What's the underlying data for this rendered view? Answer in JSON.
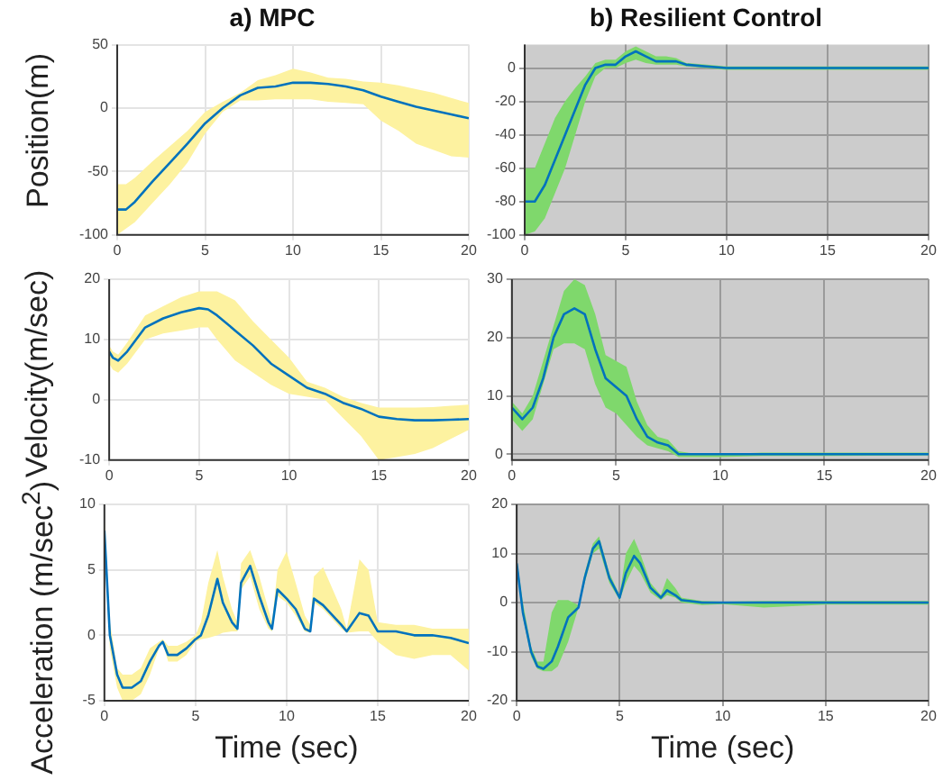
{
  "chart_data": [
    {
      "type": "line",
      "title": "a) MPC",
      "ylabel": "Position(m)",
      "x": [
        0,
        0.5,
        1,
        2,
        3,
        4,
        5,
        6,
        7,
        8,
        9,
        10,
        11,
        12,
        13,
        14,
        15,
        16,
        17,
        18,
        19,
        20
      ],
      "xlim": [
        0,
        20
      ],
      "xticks": [
        0,
        5,
        10,
        15,
        20
      ],
      "ylim": [
        -100,
        50
      ],
      "yticks": [
        -100,
        -50,
        0,
        50
      ],
      "grid": true,
      "marker": "none",
      "series": [
        {
          "color": "#0072bd",
          "values": [
            -80,
            -80,
            -74,
            -58,
            -43,
            -28,
            -12,
            0,
            10,
            16,
            17,
            20,
            20,
            19,
            17,
            14,
            9,
            5,
            1,
            -2,
            -5,
            -8
          ],
          "upper": [
            -60,
            -60,
            -55,
            -42,
            -30,
            -18,
            -3,
            5,
            12,
            22,
            26,
            31,
            28,
            24,
            23,
            21,
            20,
            18,
            15,
            12,
            8,
            4
          ],
          "lower": [
            -100,
            -95,
            -90,
            -75,
            -60,
            -43,
            -20,
            -3,
            6,
            6,
            7,
            7,
            7,
            5,
            4,
            3,
            -10,
            -18,
            -28,
            -33,
            -38,
            -39
          ]
        }
      ]
    },
    {
      "type": "line",
      "title": "b) Resilient Control",
      "x": [
        0,
        0.5,
        1,
        1.5,
        2,
        2.5,
        3,
        3.5,
        4,
        4.5,
        5,
        5.5,
        6,
        6.5,
        7,
        7.5,
        8,
        9,
        10,
        12,
        15,
        20
      ],
      "xlim": [
        0,
        20
      ],
      "xticks": [
        0,
        5,
        10,
        15,
        20
      ],
      "ylim": [
        -100,
        14
      ],
      "yticks": [
        -100,
        -80,
        -60,
        -40,
        -20,
        0
      ],
      "grid": true,
      "marker": "none",
      "series": [
        {
          "color": "#0072bd",
          "values": [
            -80,
            -80,
            -70,
            -55,
            -40,
            -25,
            -10,
            0,
            2,
            2,
            7,
            10,
            7,
            4,
            4,
            4,
            2,
            1,
            0,
            0,
            0,
            0
          ],
          "upper": [
            -60,
            -60,
            -45,
            -30,
            -20,
            -12,
            -5,
            3,
            5,
            5,
            10,
            13,
            10,
            7,
            7,
            6,
            3,
            2,
            1,
            1,
            1,
            1
          ],
          "lower": [
            -100,
            -98,
            -90,
            -75,
            -60,
            -40,
            -20,
            -5,
            0,
            0,
            3,
            5,
            3,
            2,
            2,
            2,
            1,
            0,
            -1,
            -1,
            -1,
            -1
          ]
        }
      ]
    },
    {
      "type": "line",
      "ylabel": "Velocity(m/sec)",
      "x": [
        0,
        0.2,
        0.5,
        1,
        2,
        3,
        4,
        5,
        5.5,
        6,
        7,
        8,
        9,
        10,
        11,
        12,
        13,
        14,
        15,
        16,
        17,
        18,
        19,
        20
      ],
      "xlim": [
        0,
        20
      ],
      "xticks": [
        0,
        5,
        10,
        15,
        20
      ],
      "ylim": [
        -10,
        20
      ],
      "yticks": [
        -10,
        0,
        10,
        20
      ],
      "grid": true,
      "marker": "none",
      "series": [
        {
          "color": "#0072bd",
          "values": [
            8,
            7,
            6.5,
            8,
            12,
            13.5,
            14.5,
            15.2,
            15,
            14,
            11.5,
            9,
            6,
            4,
            2,
            1,
            -0.5,
            -1.5,
            -2.8,
            -3.2,
            -3.4,
            -3.4,
            -3.3,
            -3.2
          ],
          "upper": [
            9,
            8,
            7.5,
            9.5,
            14,
            15.5,
            17,
            18,
            18,
            18,
            16.5,
            13,
            10,
            7,
            3,
            2,
            0.5,
            -0.5,
            -1.3,
            -1.3,
            -1.3,
            -1.2,
            -1,
            -0.8
          ],
          "lower": [
            6,
            5,
            4.5,
            6,
            10,
            11,
            11.5,
            12,
            12,
            10,
            6.5,
            4.5,
            2.5,
            1,
            0.5,
            0,
            -3,
            -6,
            -10,
            -9.5,
            -9,
            -8,
            -6.5,
            -5
          ]
        }
      ]
    },
    {
      "type": "line",
      "x": [
        0,
        0.5,
        1,
        1.5,
        2,
        2.5,
        3,
        3.5,
        4,
        4.5,
        5,
        5.5,
        6,
        6.5,
        7,
        7.5,
        8,
        9,
        10,
        12,
        15,
        20
      ],
      "xlim": [
        0,
        20
      ],
      "xticks": [
        0,
        5,
        10,
        15,
        20
      ],
      "ylim": [
        -1,
        30
      ],
      "yticks": [
        0,
        10,
        20,
        30
      ],
      "grid": true,
      "marker": "none",
      "series": [
        {
          "color": "#0072bd",
          "values": [
            8,
            6,
            8,
            13,
            20,
            24,
            25,
            24,
            18,
            13,
            11.5,
            10,
            6,
            3,
            2,
            1.5,
            0,
            0,
            0,
            0,
            0,
            0
          ],
          "upper": [
            9,
            7,
            10,
            16,
            22,
            28,
            30,
            29,
            24,
            17,
            16,
            15,
            9,
            5,
            3,
            2.5,
            0.5,
            0,
            0,
            0.3,
            0.3,
            0.3
          ],
          "lower": [
            6,
            4,
            6,
            12,
            18,
            19,
            19,
            18,
            12,
            8,
            7,
            5,
            3,
            1.5,
            1,
            0.5,
            -0.5,
            -0.5,
            -0.5,
            -0.3,
            -0.3,
            -0.2
          ]
        }
      ]
    },
    {
      "type": "line",
      "ylabel": "Acceleration (m/sec$^{2}$)",
      "xlabel": "Time (sec)",
      "x": [
        0,
        0.3,
        0.7,
        1,
        1.5,
        2,
        2.5,
        3,
        3.2,
        3.5,
        4,
        4.5,
        5,
        5.3,
        5.7,
        6.2,
        6.5,
        7,
        7.3,
        7.5,
        8,
        8.5,
        9,
        9.2,
        9.5,
        10,
        10.5,
        11,
        11.3,
        11.5,
        12,
        13,
        13.3,
        14,
        14.5,
        15,
        16,
        17,
        18,
        19,
        20
      ],
      "xlim": [
        0,
        20
      ],
      "xticks": [
        0,
        5,
        10,
        15,
        20
      ],
      "ylim": [
        -5,
        10
      ],
      "yticks": [
        -5,
        0,
        5,
        10
      ],
      "grid": true,
      "marker": "none",
      "series": [
        {
          "color": "#0072bd",
          "values": [
            8,
            0,
            -3,
            -4,
            -4,
            -3.5,
            -2,
            -0.8,
            -0.5,
            -1.5,
            -1.5,
            -1,
            -0.3,
            0,
            1.5,
            4.3,
            2.5,
            1,
            0.5,
            4,
            5.3,
            3,
            1,
            0.5,
            3.5,
            2.8,
            2,
            0.5,
            0.3,
            2.8,
            2.3,
            0.8,
            0.3,
            1.7,
            1.5,
            0.3,
            0.3,
            0,
            0,
            -0.2,
            -0.6
          ],
          "upper": [
            9,
            1,
            -2.5,
            -3,
            -3,
            -2.5,
            -1,
            -0.5,
            -0.3,
            -0.8,
            -0.8,
            -0.5,
            0,
            1,
            4,
            6.5,
            4.5,
            2,
            1,
            5.5,
            6.5,
            4.5,
            2,
            1,
            5,
            6.4,
            4,
            1.5,
            0.8,
            4.5,
            5.2,
            2,
            0.5,
            5.8,
            5,
            1,
            0.8,
            0.8,
            0.5,
            0.5,
            0.5
          ],
          "lower": [
            8,
            -1,
            -4,
            -5,
            -5,
            -4.5,
            -3,
            -1,
            -0.6,
            -2,
            -2,
            -1.5,
            -0.5,
            -0.3,
            -0.2,
            0,
            0.2,
            0.3,
            0.3,
            3.5,
            4.5,
            2,
            0.5,
            0.3,
            3,
            2.5,
            1.5,
            0.3,
            0.2,
            2.5,
            2,
            0.5,
            0.2,
            0.3,
            0.3,
            -0.5,
            -1.5,
            -1.8,
            -1.5,
            -1.5,
            -2.7
          ]
        }
      ]
    },
    {
      "type": "line",
      "xlabel": "Time (sec)",
      "x": [
        0,
        0.3,
        0.7,
        1,
        1.3,
        1.7,
        2,
        2.5,
        3,
        3.3,
        3.7,
        4,
        4.5,
        5,
        5.3,
        5.7,
        6,
        6.5,
        7,
        7.3,
        7.7,
        8,
        9,
        10,
        12,
        15,
        20
      ],
      "xlim": [
        0,
        20
      ],
      "xticks": [
        0,
        5,
        10,
        15,
        20
      ],
      "ylim": [
        -20,
        20
      ],
      "yticks": [
        -20,
        -10,
        0,
        10,
        20
      ],
      "grid": true,
      "marker": "none",
      "series": [
        {
          "color": "#0072bd",
          "values": [
            8,
            -2,
            -10,
            -13,
            -13.5,
            -12,
            -9,
            -3,
            -1,
            5,
            11,
            12.5,
            5,
            1,
            6,
            9.5,
            8,
            3,
            1,
            2.5,
            1.5,
            0.5,
            0,
            0,
            0,
            0,
            0
          ],
          "upper": [
            9,
            0,
            -9,
            -12,
            -12,
            -2,
            0.5,
            0.5,
            -0.5,
            6,
            12,
            13.5,
            6,
            1.5,
            10,
            13,
            10,
            4,
            1.5,
            5,
            3,
            1,
            0.3,
            0.2,
            0.3,
            0.3,
            0.3
          ],
          "lower": [
            8,
            -3,
            -11,
            -13.5,
            -14,
            -14,
            -13,
            -8,
            -1,
            4,
            10,
            11,
            4,
            0.5,
            4,
            7.5,
            6,
            2,
            0.5,
            1.5,
            1,
            0,
            -0.5,
            -0.3,
            -1,
            -0.4,
            -0.4
          ]
        }
      ]
    }
  ]
}
